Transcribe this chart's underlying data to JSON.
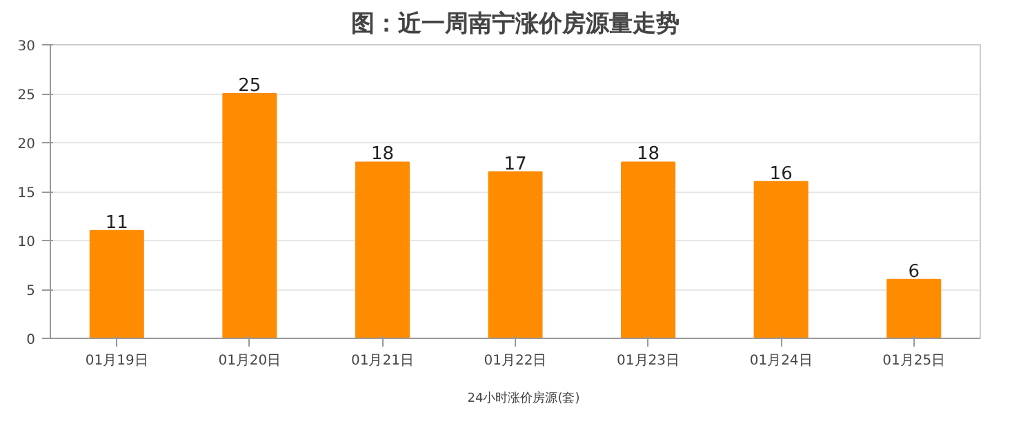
{
  "chart_data": {
    "type": "bar",
    "title": "图：近一周南宁涨价房源量走势",
    "categories": [
      "01月19日",
      "01月20日",
      "01月21日",
      "01月22日",
      "01月23日",
      "01月24日",
      "01月25日"
    ],
    "series": [
      {
        "name": "24小时涨价房源(套)",
        "color": "#ff8c00",
        "values": [
          11,
          25,
          18,
          17,
          18,
          16,
          6
        ]
      }
    ],
    "ylim": [
      0,
      30
    ],
    "yticks": [
      0,
      5,
      10,
      15,
      20,
      25,
      30
    ],
    "grid": "y",
    "legend": "bottom",
    "data_labels": true
  }
}
